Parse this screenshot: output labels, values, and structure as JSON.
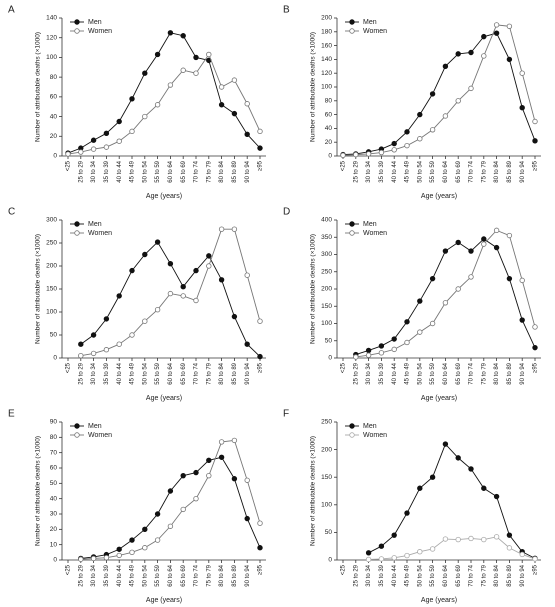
{
  "chart_data": [
    {
      "type": "line",
      "panel": "A",
      "x_label": "Age (years)",
      "y_label": "Number of attributable deaths (×1000)",
      "categories": [
        "<25",
        "25 to 29",
        "30 to 34",
        "35 to 39",
        "40 to 44",
        "45 to 49",
        "50 to 54",
        "55 to 59",
        "60 to 64",
        "65 to 69",
        "70 to 74",
        "75 to 79",
        "80 to 84",
        "85 to 89",
        "90 to 94",
        "≥95"
      ],
      "series": [
        {
          "name": "Men",
          "color": "#111111",
          "marker": "filled",
          "values": [
            3,
            8,
            16,
            23,
            35,
            58,
            84,
            103,
            125,
            122,
            100,
            97,
            52,
            43,
            22,
            8
          ]
        },
        {
          "name": "Women",
          "color": "#777777",
          "marker": "open",
          "values": [
            2,
            4,
            7,
            9,
            15,
            25,
            40,
            52,
            72,
            87,
            84,
            103,
            70,
            77,
            53,
            25
          ]
        }
      ],
      "ylim": [
        0,
        140
      ],
      "yticks": [
        0,
        20,
        40,
        60,
        80,
        100,
        120,
        140
      ],
      "legend": "top-left"
    },
    {
      "type": "line",
      "panel": "B",
      "x_label": "Age (years)",
      "y_label": "Number of attributable deaths (×1000)",
      "categories": [
        "<25",
        "25 to 29",
        "30 to 34",
        "35 to 39",
        "40 to 44",
        "45 to 49",
        "50 to 54",
        "55 to 59",
        "60 to 64",
        "65 to 69",
        "70 to 74",
        "75 to 79",
        "80 to 84",
        "85 to 89",
        "90 to 94",
        "≥95"
      ],
      "series": [
        {
          "name": "Men",
          "color": "#111111",
          "marker": "filled",
          "values": [
            2,
            3,
            6,
            10,
            18,
            35,
            60,
            90,
            130,
            148,
            150,
            173,
            178,
            140,
            70,
            22
          ]
        },
        {
          "name": "Women",
          "color": "#777777",
          "marker": "open",
          "values": [
            1,
            2,
            3,
            5,
            9,
            15,
            25,
            38,
            58,
            80,
            98,
            145,
            190,
            188,
            120,
            50
          ]
        }
      ],
      "ylim": [
        0,
        200
      ],
      "yticks": [
        0,
        20,
        40,
        60,
        80,
        100,
        120,
        140,
        160,
        180,
        200
      ],
      "legend": "top-left"
    },
    {
      "type": "line",
      "panel": "C",
      "x_label": "Age (years)",
      "y_label": "Number of attributable deaths (×1000)",
      "categories": [
        "<25",
        "25 to 29",
        "30 to 34",
        "35 to 39",
        "40 to 44",
        "45 to 49",
        "50 to 54",
        "55 to 59",
        "60 to 64",
        "65 to 69",
        "70 to 74",
        "75 to 79",
        "80 to 84",
        "85 to 89",
        "90 to 94",
        "≥95"
      ],
      "series": [
        {
          "name": "Men",
          "color": "#111111",
          "marker": "filled",
          "values": [
            null,
            30,
            50,
            85,
            135,
            190,
            225,
            252,
            205,
            155,
            190,
            222,
            170,
            90,
            30,
            3
          ]
        },
        {
          "name": "Women",
          "color": "#777777",
          "marker": "open",
          "values": [
            null,
            5,
            10,
            18,
            30,
            50,
            80,
            105,
            140,
            135,
            125,
            200,
            280,
            280,
            180,
            80
          ]
        }
      ],
      "ylim": [
        0,
        300
      ],
      "yticks": [
        0,
        50,
        100,
        150,
        200,
        250,
        300
      ],
      "legend": "top-left"
    },
    {
      "type": "line",
      "panel": "D",
      "x_label": "Age (years)",
      "y_label": "Number of attributable deaths (×1000)",
      "categories": [
        "<25",
        "25 to 29",
        "30 to 34",
        "35 to 39",
        "40 to 44",
        "45 to 49",
        "50 to 54",
        "55 to 59",
        "60 to 64",
        "65 to 69",
        "70 to 74",
        "75 to 79",
        "80 to 84",
        "85 to 89",
        "90 to 94",
        "≥95"
      ],
      "series": [
        {
          "name": "Men",
          "color": "#111111",
          "marker": "filled",
          "values": [
            null,
            10,
            22,
            35,
            55,
            105,
            165,
            230,
            310,
            335,
            310,
            345,
            320,
            230,
            110,
            30
          ]
        },
        {
          "name": "Women",
          "color": "#777777",
          "marker": "open",
          "values": [
            null,
            3,
            8,
            15,
            25,
            45,
            75,
            100,
            160,
            200,
            235,
            330,
            370,
            355,
            225,
            90
          ]
        }
      ],
      "ylim": [
        0,
        400
      ],
      "yticks": [
        0,
        50,
        100,
        150,
        200,
        250,
        300,
        350,
        400
      ],
      "legend": "top-left"
    },
    {
      "type": "line",
      "panel": "E",
      "x_label": "Age (years)",
      "y_label": "Number of attributable deaths (×1000)",
      "categories": [
        "<25",
        "25 to 29",
        "30 to 34",
        "35 to 39",
        "40 to 44",
        "45 to 49",
        "50 to 54",
        "55 to 59",
        "60 to 64",
        "65 to 69",
        "70 to 74",
        "75 to 79",
        "80 to 84",
        "85 to 89",
        "90 to 94",
        "≥95"
      ],
      "series": [
        {
          "name": "Men",
          "color": "#111111",
          "marker": "filled",
          "values": [
            null,
            1,
            2,
            3.5,
            7,
            13,
            20,
            30,
            45,
            55,
            57,
            65,
            67,
            53,
            27,
            8
          ]
        },
        {
          "name": "Women",
          "color": "#777777",
          "marker": "open",
          "values": [
            null,
            0.5,
            1,
            1.5,
            3,
            5,
            8,
            13,
            22,
            33,
            40,
            55,
            77,
            78,
            52,
            24
          ]
        }
      ],
      "ylim": [
        0,
        90
      ],
      "yticks": [
        0,
        10,
        20,
        30,
        40,
        50,
        60,
        70,
        80,
        90
      ],
      "legend": "top-left"
    },
    {
      "type": "line",
      "panel": "F",
      "x_label": "Age (years)",
      "y_label": "Number of attributable deaths (×1000)",
      "categories": [
        "<25",
        "25 to 29",
        "30 to 34",
        "35 to 39",
        "40 to 44",
        "45 to 49",
        "50 to 54",
        "55 to 59",
        "60 to 64",
        "65 to 69",
        "70 to 74",
        "75 to 79",
        "80 to 84",
        "85 to 89",
        "90 to 94",
        "≥95"
      ],
      "series": [
        {
          "name": "Men",
          "color": "#111111",
          "marker": "filled",
          "values": [
            null,
            null,
            13,
            25,
            45,
            85,
            130,
            150,
            210,
            185,
            165,
            130,
            115,
            45,
            15,
            3
          ]
        },
        {
          "name": "Women",
          "color": "#aaaaaa",
          "marker": "open",
          "values": [
            null,
            null,
            1,
            2,
            4,
            8,
            15,
            20,
            38,
            37,
            39,
            37,
            42,
            22,
            10,
            2
          ]
        }
      ],
      "ylim": [
        0,
        250
      ],
      "yticks": [
        0,
        50,
        100,
        150,
        200,
        250
      ],
      "legend": "top-left"
    }
  ]
}
